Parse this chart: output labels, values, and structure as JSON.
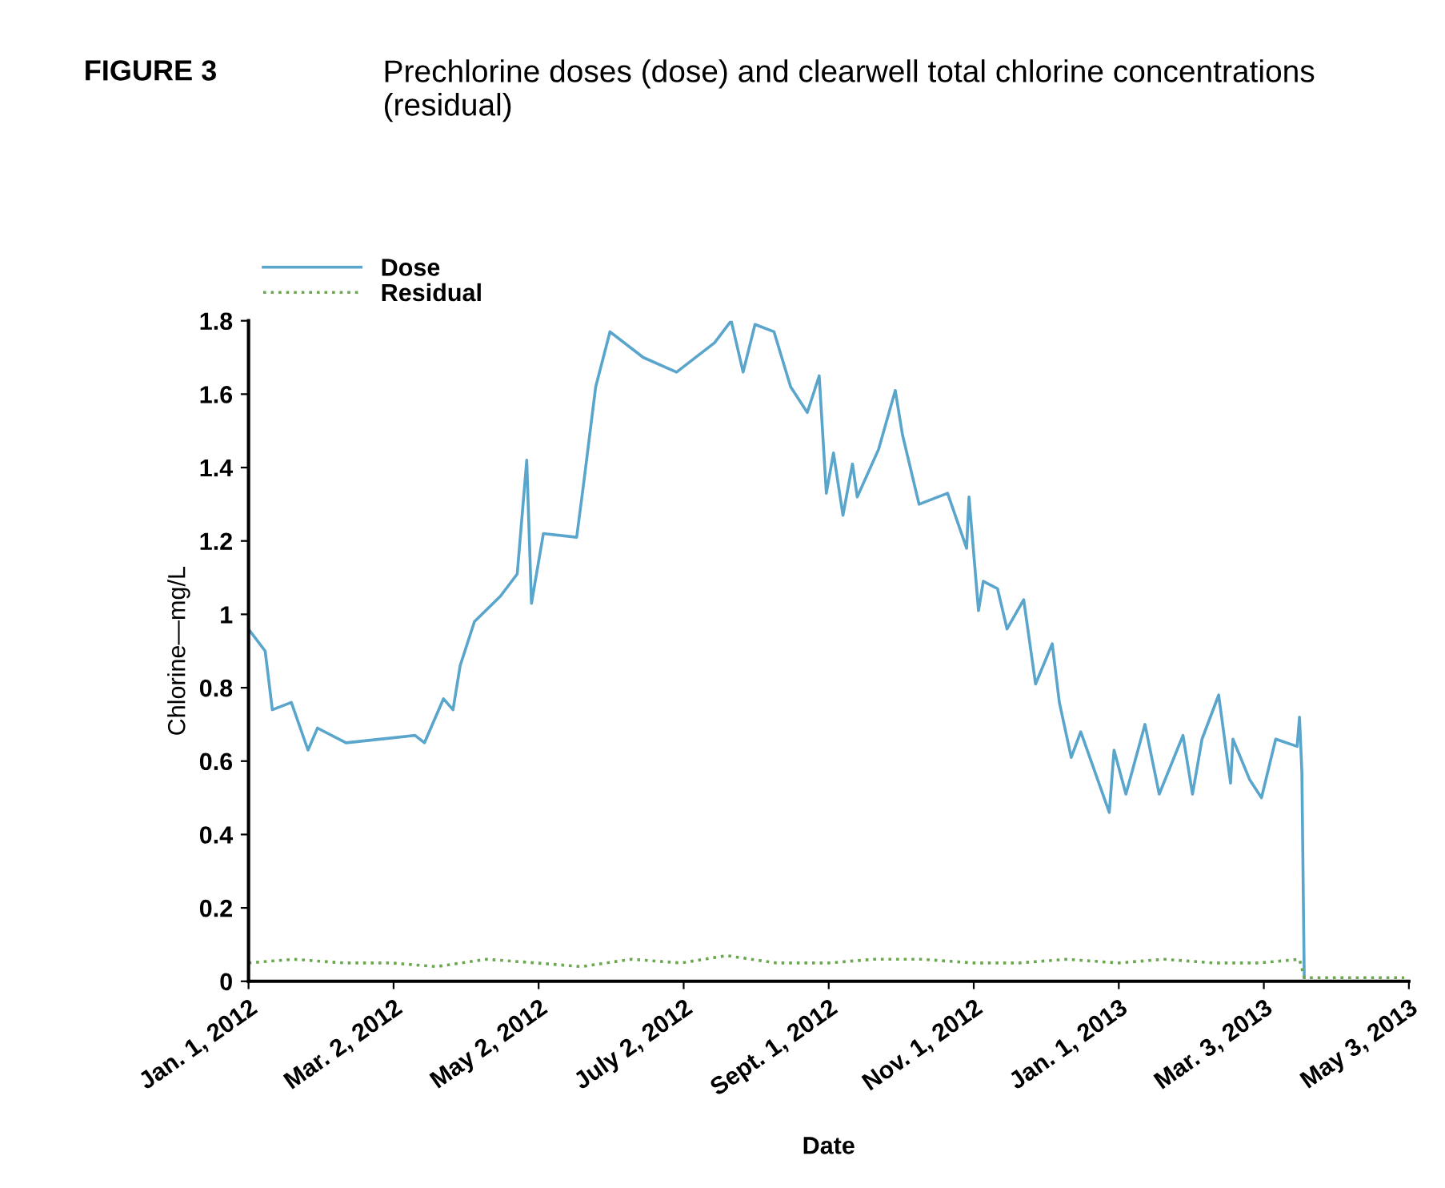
{
  "chart_data": {
    "type": "line",
    "title": "FIGURE 3",
    "subtitle": "Prechlorine doses (dose) and clearwell total chlorine concentrations (residual)",
    "xlabel": "Date",
    "ylabel": "Chlorine—mg/L",
    "xlim": [
      "2012-01-01",
      "2013-05-03"
    ],
    "xticks": [
      {
        "value": "2012-01-01",
        "label": "Jan. 1, 2012"
      },
      {
        "value": "2012-03-02",
        "label": "Mar. 2, 2012"
      },
      {
        "value": "2012-05-02",
        "label": "May 2, 2012"
      },
      {
        "value": "2012-07-02",
        "label": "July 2, 2012"
      },
      {
        "value": "2012-09-01",
        "label": "Sept. 1, 2012"
      },
      {
        "value": "2012-11-01",
        "label": "Nov. 1, 2012"
      },
      {
        "value": "2013-01-01",
        "label": "Jan. 1, 2013"
      },
      {
        "value": "2013-03-03",
        "label": "Mar. 3, 2013"
      },
      {
        "value": "2013-05-03",
        "label": "May 3, 2013"
      }
    ],
    "ylim": [
      0,
      1.8
    ],
    "yticks": [
      0,
      0.2,
      0.4,
      0.6,
      0.8,
      1,
      1.2,
      1.4,
      1.6,
      1.8
    ],
    "grid": false,
    "legend": "top left",
    "marker": "none",
    "series": [
      {
        "name": "Dose",
        "color": "#5aa5cc",
        "line_style": "solid",
        "x": [
          "2012-01-01",
          "2012-01-08",
          "2012-01-11",
          "2012-01-19",
          "2012-01-26",
          "2012-01-30",
          "2012-02-11",
          "2012-03-11",
          "2012-03-15",
          "2012-03-23",
          "2012-03-27",
          "2012-03-30",
          "2012-04-05",
          "2012-04-16",
          "2012-04-23",
          "2012-04-27",
          "2012-04-29",
          "2012-05-04",
          "2012-05-18",
          "2012-05-21",
          "2012-05-26",
          "2012-06-01",
          "2012-06-15",
          "2012-06-29",
          "2012-07-15",
          "2012-07-22",
          "2012-07-27",
          "2012-08-01",
          "2012-08-09",
          "2012-08-16",
          "2012-08-23",
          "2012-08-28",
          "2012-08-31",
          "2012-09-03",
          "2012-09-07",
          "2012-09-11",
          "2012-09-13",
          "2012-09-22",
          "2012-09-29",
          "2012-10-02",
          "2012-10-09",
          "2012-10-21",
          "2012-10-29",
          "2012-10-30",
          "2012-11-03",
          "2012-11-05",
          "2012-11-11",
          "2012-11-15",
          "2012-11-22",
          "2012-11-27",
          "2012-12-04",
          "2012-12-07",
          "2012-12-12",
          "2012-12-16",
          "2012-12-28",
          "2012-12-30",
          "2013-01-04",
          "2013-01-12",
          "2013-01-18",
          "2013-01-28",
          "2013-02-01",
          "2013-02-05",
          "2013-02-12",
          "2013-02-17",
          "2013-02-18",
          "2013-02-25",
          "2013-03-02",
          "2013-03-08",
          "2013-03-17",
          "2013-03-18",
          "2013-03-19",
          "2013-03-20"
        ],
        "values": [
          0.96,
          0.9,
          0.74,
          0.76,
          0.63,
          0.69,
          0.65,
          0.67,
          0.65,
          0.77,
          0.74,
          0.86,
          0.98,
          1.05,
          1.11,
          1.42,
          1.03,
          1.22,
          1.21,
          1.36,
          1.62,
          1.77,
          1.7,
          1.66,
          1.74,
          1.8,
          1.66,
          1.79,
          1.77,
          1.62,
          1.55,
          1.65,
          1.33,
          1.44,
          1.27,
          1.41,
          1.32,
          1.45,
          1.61,
          1.49,
          1.3,
          1.33,
          1.18,
          1.32,
          1.01,
          1.09,
          1.07,
          0.96,
          1.04,
          0.81,
          0.92,
          0.76,
          0.61,
          0.68,
          0.46,
          0.63,
          0.51,
          0.7,
          0.51,
          0.67,
          0.51,
          0.66,
          0.78,
          0.54,
          0.66,
          0.55,
          0.5,
          0.66,
          0.64,
          0.72,
          0.57,
          0.01
        ]
      },
      {
        "name": "Residual",
        "color": "#6aa84f",
        "line_style": "dotted",
        "x": [
          "2012-01-01",
          "2012-01-20",
          "2012-02-10",
          "2012-03-01",
          "2012-03-20",
          "2012-04-10",
          "2012-05-01",
          "2012-05-20",
          "2012-06-10",
          "2012-07-01",
          "2012-07-20",
          "2012-08-10",
          "2012-09-01",
          "2012-09-20",
          "2012-10-10",
          "2012-11-01",
          "2012-11-20",
          "2012-12-10",
          "2013-01-01",
          "2013-01-20",
          "2013-02-10",
          "2013-03-01",
          "2013-03-18",
          "2013-03-20",
          "2013-05-01"
        ],
        "values": [
          0.05,
          0.06,
          0.05,
          0.05,
          0.04,
          0.06,
          0.05,
          0.04,
          0.06,
          0.05,
          0.07,
          0.05,
          0.05,
          0.06,
          0.06,
          0.05,
          0.05,
          0.06,
          0.05,
          0.06,
          0.05,
          0.05,
          0.06,
          0.01,
          0.01
        ]
      }
    ]
  }
}
